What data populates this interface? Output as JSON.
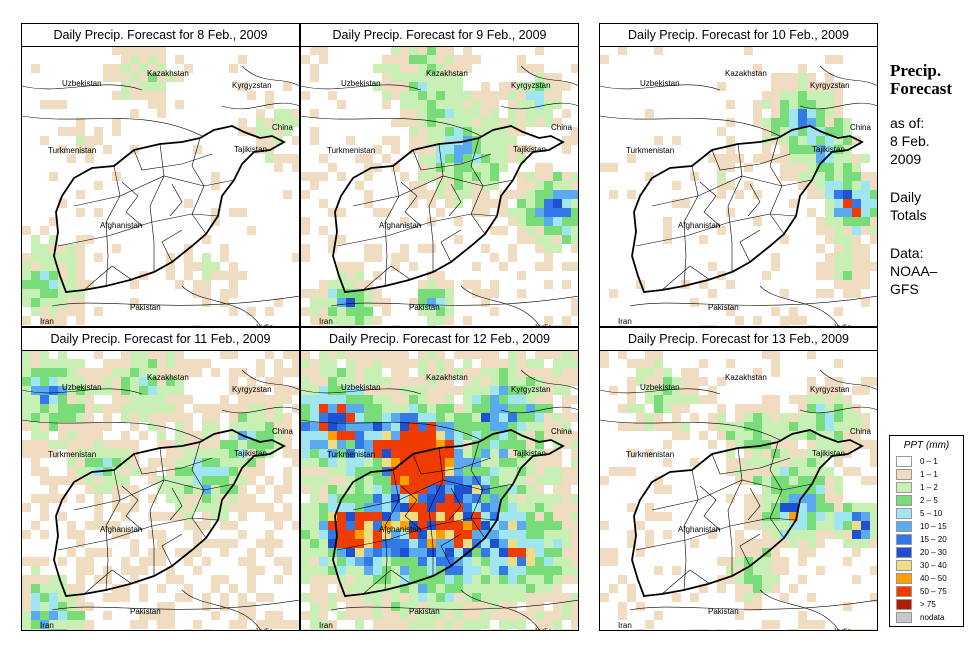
{
  "panels": [
    {
      "title": "Daily Precip. Forecast for  8 Feb., 2009",
      "day": "8 Feb., 2009"
    },
    {
      "title": "Daily Precip. Forecast for  9 Feb., 2009",
      "day": "9 Feb., 2009"
    },
    {
      "title": "Daily Precip. Forecast for  10 Feb., 2009",
      "day": "10 Feb., 2009"
    },
    {
      "title": "Daily Precip. Forecast for  11 Feb., 2009",
      "day": "11 Feb., 2009"
    },
    {
      "title": "Daily Precip. Forecast for  12 Feb., 2009",
      "day": "12 Feb., 2009"
    },
    {
      "title": "Daily Precip. Forecast for  13 Feb., 2009",
      "day": "13 Feb., 2009"
    }
  ],
  "country_labels": {
    "uzbekistan": "Uzbekistan",
    "kazakhstan": "Kazakhstan",
    "kyrgyzstan": "Kyrgyzstan",
    "china": "China",
    "tajikistan": "Tajikistan",
    "turkmenistan": "Turkmenistan",
    "afghanistan": "Afghanistan",
    "pakistan": "Pakistan",
    "iran": "Iran",
    "india": "India"
  },
  "side": {
    "title": "Precip.\nForecast",
    "asof": "as of:\n8 Feb.\n2009",
    "totals": "Daily\nTotals",
    "source": "Data:\nNOAA–\nGFS"
  },
  "legend": {
    "title": "PPT (mm)",
    "items": [
      {
        "label": "0 – 1",
        "color": "#ffffff"
      },
      {
        "label": "1 – 1",
        "color": "#f0dcc0"
      },
      {
        "label": "1 – 2",
        "color": "#c8f0b4"
      },
      {
        "label": "2 – 5",
        "color": "#78dc78"
      },
      {
        "label": "5 – 10",
        "color": "#a0e6f0"
      },
      {
        "label": "10 – 15",
        "color": "#5aaaf0"
      },
      {
        "label": "15 – 20",
        "color": "#3278e6"
      },
      {
        "label": "20 – 30",
        "color": "#1e50d2"
      },
      {
        "label": "30 – 40",
        "color": "#f0dc82"
      },
      {
        "label": "40 – 50",
        "color": "#ffa000"
      },
      {
        "label": "50 – 75",
        "color": "#f03c00"
      },
      {
        "label": "> 75",
        "color": "#b41e00"
      },
      {
        "label": "nodata",
        "color": "#c8c8c8"
      }
    ]
  }
}
